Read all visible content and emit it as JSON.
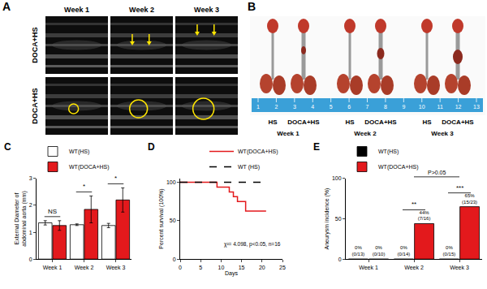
{
  "panels": [
    {
      "title": "A",
      "columns": [
        "Week 1",
        "Week 2",
        "Week 3"
      ],
      "rows": [
        "DOCA+HS",
        "DOCA+HS"
      ]
    },
    {
      "title": "B",
      "groups": [
        {
          "labels": [
            "HS",
            "DOCA+HS"
          ],
          "week": "Week 1"
        },
        {
          "labels": [
            "HS",
            "DOCA+HS"
          ],
          "week": "Week 2"
        },
        {
          "labels": [
            "HS",
            "DOCA+HS"
          ],
          "week": "Week 3"
        }
      ],
      "ruler": [
        "1",
        "2",
        "3",
        "4",
        "5",
        "6",
        "7",
        "8",
        "9",
        "10",
        "11",
        "12",
        "13"
      ]
    }
  ],
  "chart_data": [
    {
      "title": "C",
      "type": "bar",
      "categories": [
        "Week 1",
        "Week 2",
        "Week 3"
      ],
      "y_label": "External Diameter of\nabdominal aorta (mm)",
      "ylim": [
        0,
        3
      ],
      "yticks": [
        0,
        1,
        2,
        3
      ],
      "legend": "top-left",
      "series": [
        {
          "name": "WT(HS)",
          "color": "#ffffff",
          "values": [
            1.35,
            1.28,
            1.25
          ],
          "errors": [
            0.08,
            0.03,
            0.08
          ]
        },
        {
          "name": "WT(DOCA+HS)",
          "color": "#e3191c",
          "values": [
            1.25,
            1.85,
            2.2
          ],
          "errors": [
            0.18,
            0.5,
            0.45
          ]
        }
      ],
      "annotations": [
        {
          "text": "NS",
          "categories": [
            "Week 1"
          ]
        },
        {
          "text": "*",
          "categories": [
            "Week 2"
          ]
        },
        {
          "text": "*",
          "categories": [
            "Week 3"
          ]
        }
      ]
    },
    {
      "title": "D",
      "type": "line",
      "line_style": "step",
      "x_label": "Days",
      "y_label": "Percent survival (100%)",
      "xlim": [
        0,
        25
      ],
      "xticks": [
        0,
        5,
        10,
        15,
        20,
        25
      ],
      "ylim": [
        0,
        105
      ],
      "yticks": [
        0,
        50,
        100
      ],
      "legend": "top-right",
      "series": [
        {
          "name": "WT(DOCA+HS)",
          "color": "#e3191c",
          "line_style": "solid",
          "x": [
            0,
            9,
            12,
            13,
            14,
            16,
            21
          ],
          "values": [
            100,
            93.75,
            87.5,
            81.25,
            75,
            62.5,
            62.5
          ]
        },
        {
          "name": "WT (HS)",
          "color": "#000000",
          "line_style": "dashed",
          "x": [
            0,
            21
          ],
          "values": [
            100,
            100
          ]
        }
      ],
      "annotations": [
        {
          "text": "χ²= 4.098, p<0.05, n=16"
        }
      ]
    },
    {
      "title": "E",
      "type": "bar",
      "data_labels": true,
      "categories": [
        "Week 1",
        "Week 2",
        "Week 3"
      ],
      "y_label": "Aneurysm incidence (%)",
      "ylim": [
        0,
        100
      ],
      "yticks": [
        0,
        50,
        100
      ],
      "legend": "top-left",
      "series": [
        {
          "name": "WT(HS)",
          "color": "#000000",
          "values": [
            0,
            0,
            0
          ],
          "value_labels": [
            "0%\n(0/13)",
            "0%\n(0/14)",
            "0%\n(0/15)"
          ]
        },
        {
          "name": "WT(DOCA+HS)",
          "color": "#e3191c",
          "values": [
            0,
            44,
            65
          ],
          "value_labels": [
            "0%\n(0/10)",
            "44%\n(7/16)",
            "65%\n(15/23)"
          ]
        }
      ],
      "annotations": [
        {
          "text": "**",
          "categories": [
            "Week 2"
          ]
        },
        {
          "text": "***",
          "categories": [
            "Week 3"
          ]
        },
        {
          "text": "P>0.05",
          "categories": [
            "Week 2",
            "Week 3"
          ]
        }
      ]
    }
  ]
}
